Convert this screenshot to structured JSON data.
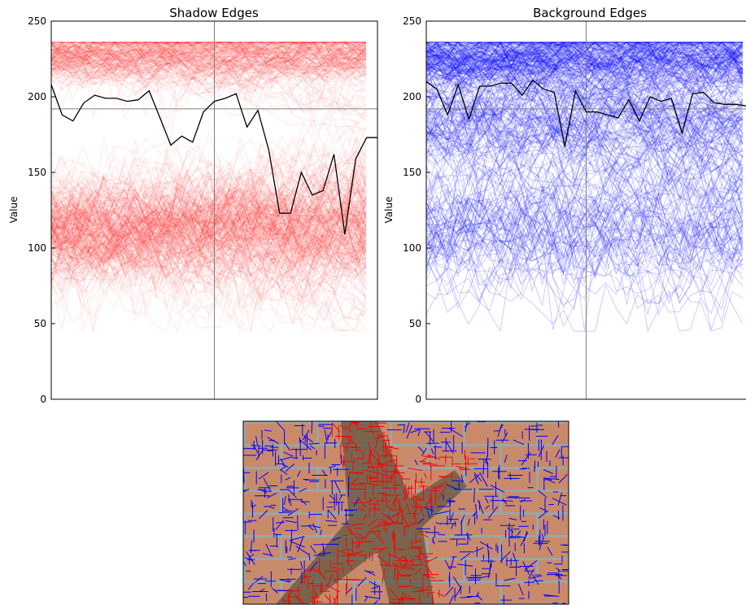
{
  "chart_data": [
    {
      "type": "line",
      "title": "Shadow Edges",
      "xlabel": "",
      "ylabel": "Value",
      "ylim": [
        0,
        250
      ],
      "yticks": [
        0,
        50,
        100,
        150,
        200,
        250
      ],
      "x": [
        0,
        1,
        2,
        3,
        4,
        5,
        6,
        7,
        8,
        9,
        10,
        11,
        12,
        13,
        14,
        15,
        16,
        17,
        18,
        19,
        20,
        21,
        22,
        23,
        24,
        25,
        26,
        27,
        28,
        29,
        30,
        31,
        32,
        33,
        34,
        35,
        36,
        37,
        38,
        39,
        40,
        41,
        42
      ],
      "xlim": [
        0,
        42
      ],
      "mean_line": 192,
      "midline_x": 21,
      "series_color": "#ff0000",
      "highlight_color": "#000000",
      "series_count_approx": 500,
      "highlight_series": [
        208,
        188,
        184,
        196,
        201,
        199,
        199,
        197,
        198,
        204,
        186,
        168,
        174,
        170,
        190,
        197,
        199,
        202,
        180,
        191,
        165,
        123,
        123,
        150,
        135,
        138,
        162,
        109,
        159,
        173,
        173,
        null,
        null,
        null,
        null,
        null,
        null,
        null,
        null,
        null,
        null,
        null,
        null
      ],
      "clusters": [
        {
          "level": 228,
          "spread": 6,
          "share": 0.4
        },
        {
          "level": 112,
          "spread": 12,
          "share": 0.6
        }
      ]
    },
    {
      "type": "line",
      "title": "Background Edges",
      "xlabel": "",
      "ylabel": "Value",
      "ylim": [
        0,
        250
      ],
      "yticks": [
        0,
        50,
        100,
        150,
        200,
        250
      ],
      "x": [
        0,
        1,
        2,
        3,
        4,
        5,
        6,
        7,
        8,
        9,
        10,
        11,
        12,
        13,
        14,
        15,
        16,
        17,
        18,
        19,
        20,
        21,
        22,
        23,
        24,
        25,
        26,
        27,
        28,
        29,
        30,
        31,
        32,
        33,
        34,
        35,
        36,
        37,
        38,
        39,
        40,
        41,
        42
      ],
      "xlim": [
        0,
        42
      ],
      "mean_line": 192,
      "midline_x": 21,
      "series_color": "#0000ff",
      "highlight_color": "#000000",
      "series_count_approx": 1500,
      "highlight_series": [
        210,
        205,
        188,
        208,
        185,
        207,
        207,
        209,
        209,
        201,
        211,
        205,
        203,
        167,
        204,
        190,
        190,
        188,
        186,
        198,
        184,
        200,
        197,
        199,
        176,
        202,
        203,
        196,
        195,
        195,
        194,
        null,
        null,
        null,
        null,
        null,
        null,
        null,
        null,
        null,
        null,
        null,
        null
      ],
      "clusters": [
        {
          "level": 226,
          "spread": 7,
          "share": 0.5
        },
        {
          "level": 182,
          "spread": 10,
          "share": 0.25
        },
        {
          "level": 112,
          "spread": 14,
          "share": 0.25
        }
      ]
    }
  ],
  "image_panel": {
    "description_color_shadow": "#ff0000",
    "description_color_background": "#0000ff",
    "background_color": "#c98a6a",
    "mortar_color": "#9aa6a6"
  }
}
